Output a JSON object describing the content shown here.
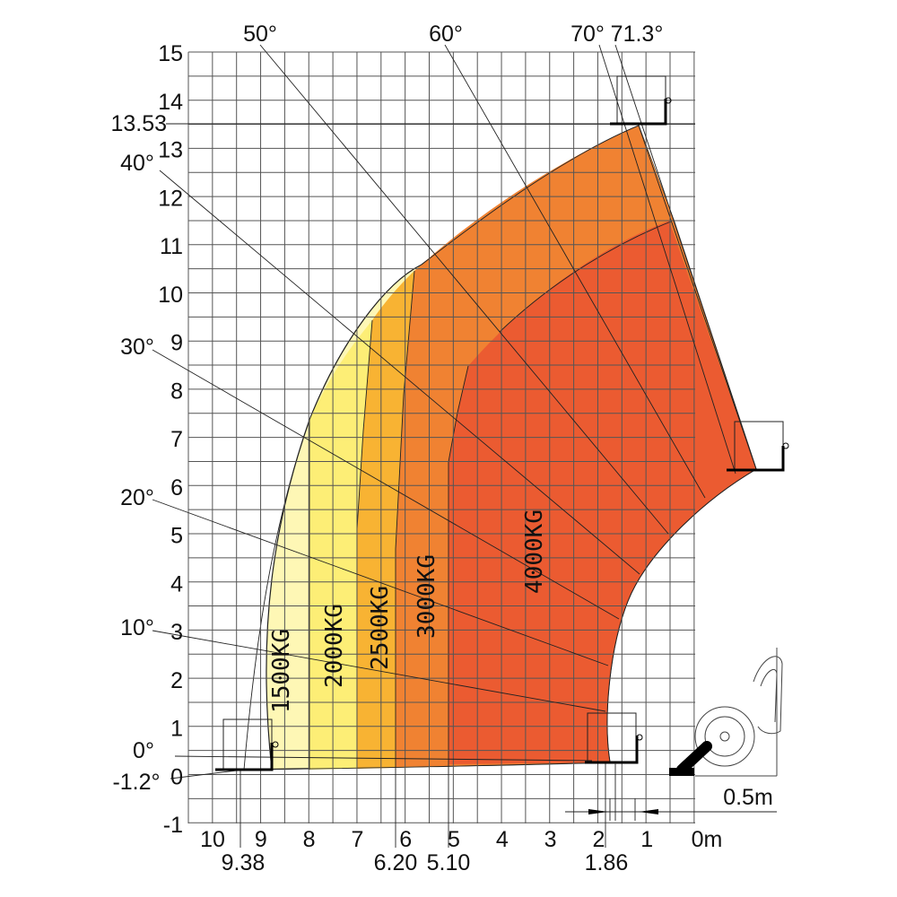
{
  "y_axis": {
    "ticks": [
      "15",
      "14",
      "13",
      "12",
      "11",
      "10",
      "9",
      "8",
      "7",
      "6",
      "5",
      "4",
      "3",
      "2",
      "1",
      "0",
      "-1"
    ],
    "marker": "13.53"
  },
  "x_axis": {
    "ticks": [
      "10",
      "9",
      "8",
      "7",
      "6",
      "5",
      "4",
      "3",
      "2",
      "1",
      "0m"
    ],
    "markers": [
      "9.38",
      "6.20",
      "5.10",
      "1.86"
    ]
  },
  "angles": {
    "top": [
      "50°",
      "60°",
      "70°",
      "71.3°"
    ],
    "left": [
      "40°",
      "30°",
      "20°",
      "10°",
      "0°",
      "-1.2°"
    ]
  },
  "zones": [
    {
      "label": "1500KG",
      "color": "#fef7b5"
    },
    {
      "label": "2000KG",
      "color": "#fdee76"
    },
    {
      "label": "2500KG",
      "color": "#f8b333"
    },
    {
      "label": "3000KG",
      "color": "#f08232"
    },
    {
      "label": "4000KG",
      "color": "#eb5b31"
    }
  ],
  "scale_label": "0.5m"
}
